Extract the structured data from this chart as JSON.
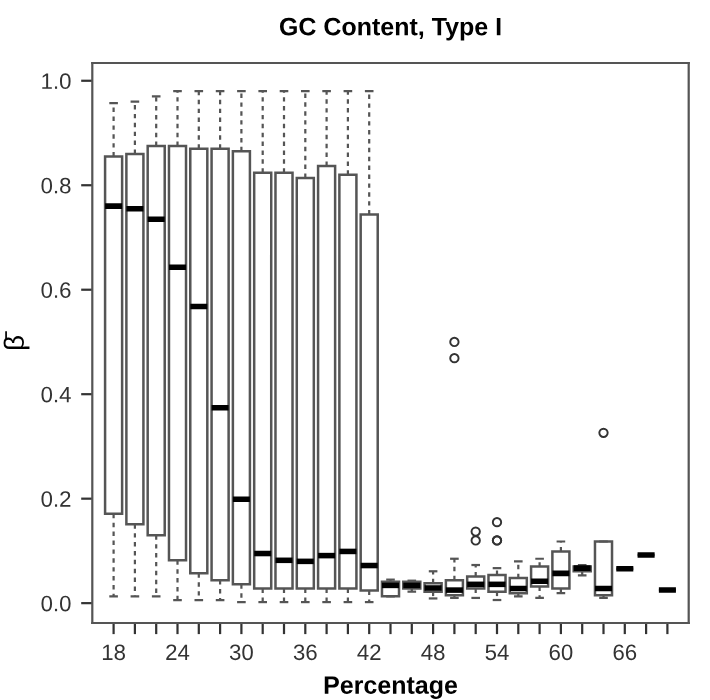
{
  "chart_data": {
    "type": "box",
    "title": "GC Content, Type I",
    "xlabel": "Percentage",
    "ylabel": "β̄",
    "categories": [
      "18",
      null,
      null,
      "24",
      null,
      null,
      "30",
      null,
      null,
      "36",
      null,
      null,
      "42",
      null,
      null,
      "48",
      null,
      null,
      "54",
      null,
      null,
      "60",
      null,
      null,
      "66",
      null,
      null
    ],
    "ylim": [
      -0.038,
      1.034
    ],
    "yticks": [
      {
        "value": 0,
        "label": "0.0"
      },
      {
        "value": 0.2,
        "label": "0.2"
      },
      {
        "value": 0.4,
        "label": "0.4"
      },
      {
        "value": 0.6,
        "label": "0.6"
      },
      {
        "value": 0.8,
        "label": "0.8"
      },
      {
        "value": 1.0,
        "label": "1.0"
      }
    ],
    "grid": false,
    "boxes": [
      {
        "low": 0.013,
        "q1": 0.171,
        "median": 0.76,
        "q3": 0.855,
        "high": 0.957
      },
      {
        "low": 0.013,
        "q1": 0.151,
        "median": 0.755,
        "q3": 0.86,
        "high": 0.96
      },
      {
        "low": 0.013,
        "q1": 0.13,
        "median": 0.735,
        "q3": 0.875,
        "high": 0.97
      },
      {
        "low": 0.006,
        "q1": 0.082,
        "median": 0.643,
        "q3": 0.875,
        "high": 0.98
      },
      {
        "low": 0.006,
        "q1": 0.057,
        "median": 0.568,
        "q3": 0.87,
        "high": 0.98
      },
      {
        "low": 0.006,
        "q1": 0.044,
        "median": 0.374,
        "q3": 0.87,
        "high": 0.98
      },
      {
        "low": 0.002,
        "q1": 0.036,
        "median": 0.199,
        "q3": 0.865,
        "high": 0.98
      },
      {
        "low": 0.002,
        "q1": 0.028,
        "median": 0.095,
        "q3": 0.824,
        "high": 0.98
      },
      {
        "low": 0.002,
        "q1": 0.028,
        "median": 0.082,
        "q3": 0.824,
        "high": 0.98
      },
      {
        "low": 0.002,
        "q1": 0.028,
        "median": 0.08,
        "q3": 0.814,
        "high": 0.98
      },
      {
        "low": 0.002,
        "q1": 0.028,
        "median": 0.091,
        "q3": 0.837,
        "high": 0.98
      },
      {
        "low": 0.002,
        "q1": 0.028,
        "median": 0.099,
        "q3": 0.82,
        "high": 0.98
      },
      {
        "low": 0.002,
        "q1": 0.024,
        "median": 0.072,
        "q3": 0.744,
        "high": 0.98
      },
      {
        "low": 0.013,
        "q1": 0.013,
        "median": 0.034,
        "q3": 0.041,
        "high": 0.045
      },
      {
        "low": 0.022,
        "q1": 0.028,
        "median": 0.034,
        "q3": 0.041,
        "high": 0.043
      },
      {
        "low": 0.009,
        "q1": 0.022,
        "median": 0.029,
        "q3": 0.038,
        "high": 0.061
      },
      {
        "low": 0.01,
        "q1": 0.015,
        "median": 0.025,
        "q3": 0.044,
        "high": 0.085,
        "outliers": [
          0.5,
          0.469
        ]
      },
      {
        "low": 0.01,
        "q1": 0.028,
        "median": 0.036,
        "q3": 0.051,
        "high": 0.073,
        "outliers": [
          0.137,
          0.12
        ]
      },
      {
        "low": 0.006,
        "q1": 0.022,
        "median": 0.036,
        "q3": 0.054,
        "high": 0.067,
        "outliers": [
          0.155,
          0.12,
          0.12
        ]
      },
      {
        "low": 0.013,
        "q1": 0.019,
        "median": 0.028,
        "q3": 0.048,
        "high": 0.08
      },
      {
        "low": 0.01,
        "q1": 0.032,
        "median": 0.042,
        "q3": 0.07,
        "high": 0.085
      },
      {
        "low": 0.019,
        "q1": 0.028,
        "median": 0.057,
        "q3": 0.099,
        "high": 0.118
      },
      {
        "low": 0.053,
        "q1": 0.061,
        "median": 0.067,
        "q3": 0.07,
        "high": 0.073
      },
      {
        "low": 0.01,
        "q1": 0.015,
        "median": 0.028,
        "q3": 0.118,
        "high": 0.118,
        "outliers": [
          0.326
        ]
      },
      {
        "low": 0.066,
        "q1": 0.066,
        "median": 0.066,
        "q3": 0.066,
        "high": 0.066
      },
      {
        "low": 0.092,
        "q1": 0.092,
        "median": 0.092,
        "q3": 0.092,
        "high": 0.092
      },
      {
        "low": 0.025,
        "q1": 0.025,
        "median": 0.025,
        "q3": 0.025,
        "high": 0.025
      }
    ]
  }
}
